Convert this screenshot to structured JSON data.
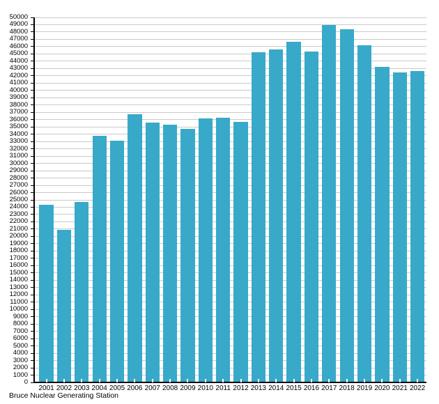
{
  "chart_data": {
    "type": "bar",
    "title": "Bruce Nuclear Generating Station",
    "categories": [
      "2001",
      "2002",
      "2003",
      "2004",
      "2005",
      "2006",
      "2007",
      "2008",
      "2009",
      "2010",
      "2011",
      "2012",
      "2013",
      "2014",
      "2015",
      "2016",
      "2017",
      "2018",
      "2019",
      "2020",
      "2021",
      "2022"
    ],
    "values": [
      24300,
      20900,
      24700,
      33800,
      33100,
      36700,
      35600,
      35350,
      34700,
      36150,
      36230,
      35660,
      45270,
      45650,
      46660,
      45330,
      48970,
      48410,
      46160,
      43220,
      42450,
      42660
    ],
    "xlabel": "",
    "ylabel": "",
    "ylim": [
      0,
      50000
    ],
    "ytick_step": 1000,
    "grid": "horizontal",
    "legend": "none",
    "bar_color": "#38a9c9",
    "gridline_color": "#c9c9c9",
    "axis_color": "#000000",
    "text_color": "#000000",
    "background_color": "#ffffff"
  }
}
